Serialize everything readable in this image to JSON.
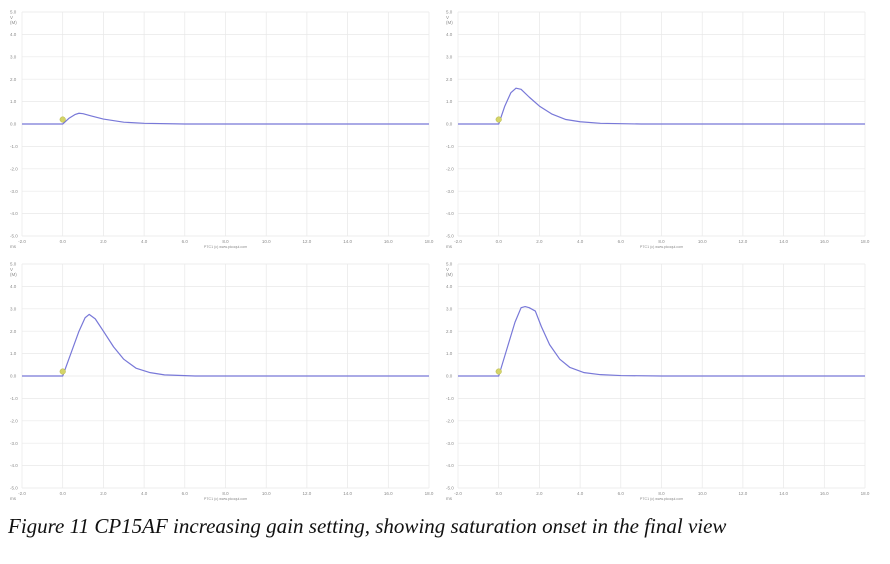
{
  "caption": "Figure 11  CP15AF increasing gain setting, showing saturation onset in the final view",
  "footer": "PTC1 (c)  www.picoqui.com",
  "unit_x": "ms",
  "unit_y": "V",
  "unit_y_mult": "(M)",
  "colors": {
    "trace": "#7878d8",
    "marker": "#d4d468",
    "grid": "#e8e8e8",
    "axis": "#dcdcdc"
  },
  "chart_data": [
    {
      "type": "line",
      "xlim": [
        -2.0,
        18.0
      ],
      "ylim": [
        -5.0,
        5.0
      ],
      "x_ticks": [
        "-2.0",
        "0.0",
        "2.0",
        "4.0",
        "6.0",
        "8.0",
        "10.0",
        "12.0",
        "14.0",
        "16.0",
        "18.0"
      ],
      "x_tick_values": [
        -2,
        0,
        2,
        4,
        6,
        8,
        10,
        12,
        14,
        16,
        18
      ],
      "y_ticks": [
        "5.0",
        "4.0",
        "3.0",
        "2.0",
        "1.0",
        "0.0",
        "-1.0",
        "-2.0",
        "-3.0",
        "-4.0",
        "-5.0"
      ],
      "y_tick_values": [
        5,
        4,
        3,
        2,
        1,
        0,
        -1,
        -2,
        -3,
        -4,
        -5
      ],
      "grid": true,
      "marker": {
        "x": 0.0,
        "y": 0.2
      },
      "series": [
        {
          "x": [
            -2.0,
            0.0,
            0.3,
            0.6,
            0.8,
            1.0,
            1.4,
            2.0,
            3.0,
            4.0,
            6.0,
            10.0,
            18.0
          ],
          "y": [
            0.0,
            0.0,
            0.25,
            0.42,
            0.48,
            0.46,
            0.36,
            0.22,
            0.08,
            0.03,
            0.0,
            0.0,
            0.0
          ]
        }
      ]
    },
    {
      "type": "line",
      "xlim": [
        -2.0,
        18.0
      ],
      "ylim": [
        -5.0,
        5.0
      ],
      "x_ticks": [
        "-2.0",
        "0.0",
        "2.0",
        "4.0",
        "6.0",
        "8.0",
        "10.0",
        "12.0",
        "14.0",
        "16.0",
        "18.0"
      ],
      "x_tick_values": [
        -2,
        0,
        2,
        4,
        6,
        8,
        10,
        12,
        14,
        16,
        18
      ],
      "y_ticks": [
        "5.0",
        "4.0",
        "3.0",
        "2.0",
        "1.0",
        "0.0",
        "-1.0",
        "-2.0",
        "-3.0",
        "-4.0",
        "-5.0"
      ],
      "y_tick_values": [
        5,
        4,
        3,
        2,
        1,
        0,
        -1,
        -2,
        -3,
        -4,
        -5
      ],
      "grid": true,
      "marker": {
        "x": 0.0,
        "y": 0.2
      },
      "series": [
        {
          "x": [
            -2.0,
            0.0,
            0.3,
            0.6,
            0.85,
            1.1,
            1.5,
            2.0,
            2.6,
            3.3,
            4.0,
            5.0,
            7.0,
            18.0
          ],
          "y": [
            0.0,
            0.0,
            0.8,
            1.4,
            1.6,
            1.55,
            1.2,
            0.8,
            0.45,
            0.2,
            0.1,
            0.03,
            0.0,
            0.0
          ]
        }
      ]
    },
    {
      "type": "line",
      "xlim": [
        -2.0,
        18.0
      ],
      "ylim": [
        -5.0,
        5.0
      ],
      "x_ticks": [
        "-2.0",
        "0.0",
        "2.0",
        "4.0",
        "6.0",
        "8.0",
        "10.0",
        "12.0",
        "14.0",
        "16.0",
        "18.0"
      ],
      "x_tick_values": [
        -2,
        0,
        2,
        4,
        6,
        8,
        10,
        12,
        14,
        16,
        18
      ],
      "y_ticks": [
        "5.0",
        "4.0",
        "3.0",
        "2.0",
        "1.0",
        "0.0",
        "-1.0",
        "-2.0",
        "-3.0",
        "-4.0",
        "-5.0"
      ],
      "y_tick_values": [
        5,
        4,
        3,
        2,
        1,
        0,
        -1,
        -2,
        -3,
        -4,
        -5
      ],
      "grid": true,
      "marker": {
        "x": 0.0,
        "y": 0.2
      },
      "series": [
        {
          "x": [
            -2.0,
            0.0,
            0.4,
            0.8,
            1.1,
            1.3,
            1.6,
            2.0,
            2.5,
            3.0,
            3.6,
            4.3,
            5.0,
            6.5,
            18.0
          ],
          "y": [
            0.0,
            0.0,
            1.0,
            2.0,
            2.6,
            2.75,
            2.55,
            2.0,
            1.3,
            0.75,
            0.35,
            0.15,
            0.05,
            0.0,
            0.0
          ]
        }
      ]
    },
    {
      "type": "line",
      "xlim": [
        -2.0,
        18.0
      ],
      "ylim": [
        -5.0,
        5.0
      ],
      "x_ticks": [
        "-2.0",
        "0.0",
        "2.0",
        "4.0",
        "6.0",
        "8.0",
        "10.0",
        "12.0",
        "14.0",
        "16.0",
        "18.0"
      ],
      "x_tick_values": [
        -2,
        0,
        2,
        4,
        6,
        8,
        10,
        12,
        14,
        16,
        18
      ],
      "y_ticks": [
        "5.0",
        "4.0",
        "3.0",
        "2.0",
        "1.0",
        "0.0",
        "-1.0",
        "-2.0",
        "-3.0",
        "-4.0",
        "-5.0"
      ],
      "y_tick_values": [
        5,
        4,
        3,
        2,
        1,
        0,
        -1,
        -2,
        -3,
        -4,
        -5
      ],
      "grid": true,
      "marker": {
        "x": 0.0,
        "y": 0.2
      },
      "series": [
        {
          "x": [
            -2.0,
            0.0,
            0.4,
            0.8,
            1.1,
            1.3,
            1.5,
            1.8,
            2.1,
            2.5,
            3.0,
            3.5,
            4.2,
            5.0,
            6.0,
            8.0,
            18.0
          ],
          "y": [
            0.0,
            0.0,
            1.2,
            2.4,
            3.05,
            3.1,
            3.05,
            2.9,
            2.2,
            1.4,
            0.75,
            0.38,
            0.15,
            0.06,
            0.02,
            0.0,
            0.0
          ]
        }
      ]
    }
  ]
}
